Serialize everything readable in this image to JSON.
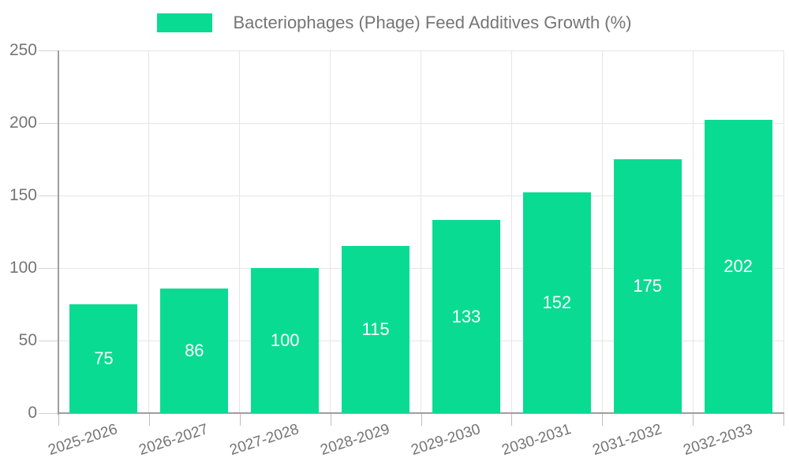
{
  "chart_data": {
    "type": "bar",
    "title": "Bacteriophages (Phage) Feed Additives Growth (%)",
    "categories": [
      "2025-2026",
      "2026-2027",
      "2027-2028",
      "2028-2029",
      "2029-2030",
      "2030-2031",
      "2031-2032",
      "2032-2033"
    ],
    "values": [
      75,
      86,
      100,
      115,
      133,
      152,
      175,
      202
    ],
    "xlabel": "",
    "ylabel": "",
    "ylim": [
      0,
      250
    ],
    "yticks": [
      0,
      50,
      100,
      150,
      200,
      250
    ],
    "grid": true,
    "legend_position": "top-center",
    "bar_color": "#0adb92",
    "bar_label_color": "#ffffff",
    "axis_text_color": "#757575",
    "axis_line_color": "#9e9e9e",
    "gridline_color": "#e5e5e5",
    "x_label_rotation_deg": -18
  }
}
